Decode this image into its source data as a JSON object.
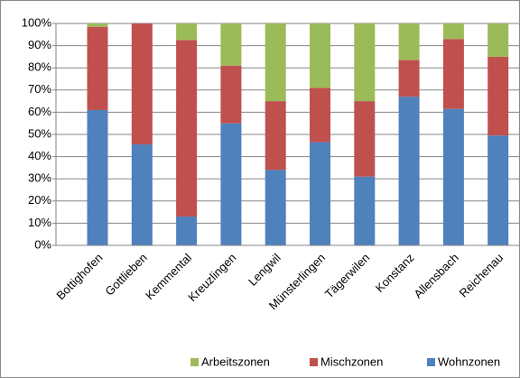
{
  "chart_data": {
    "type": "stacked_bar",
    "categories": [
      "Bottighofen",
      "Gottlieben",
      "Kemmental",
      "Kreuzlingen",
      "Lengwil",
      "Münsterlingen",
      "Tägerwilen",
      "Konstanz",
      "Allensbach",
      "Reichenau"
    ],
    "series": [
      {
        "name": "Arbeitszonen",
        "color": "#9bbb59",
        "values": [
          1.5,
          0,
          7.5,
          19,
          35,
          29,
          35,
          16.5,
          7,
          15
        ]
      },
      {
        "name": "Mischzonen",
        "color": "#c0504d",
        "values": [
          37.5,
          54.5,
          79.5,
          26,
          31,
          24.5,
          34,
          16.5,
          31.5,
          35.5
        ]
      },
      {
        "name": "Wohnzonen",
        "color": "#4f81bd",
        "values": [
          61,
          45.5,
          13,
          55,
          34,
          46.5,
          31,
          67,
          61.5,
          49.5
        ]
      }
    ],
    "ylim": [
      0,
      100
    ],
    "yticks": [
      {
        "value": 0,
        "label": "0%"
      },
      {
        "value": 10,
        "label": "10%"
      },
      {
        "value": 20,
        "label": "20%"
      },
      {
        "value": 30,
        "label": "30%"
      },
      {
        "value": 40,
        "label": "40%"
      },
      {
        "value": 50,
        "label": "50%"
      },
      {
        "value": 60,
        "label": "60%"
      },
      {
        "value": 70,
        "label": "70%"
      },
      {
        "value": 80,
        "label": "80%"
      },
      {
        "value": 90,
        "label": "90%"
      },
      {
        "value": 100,
        "label": "100%"
      }
    ],
    "grid": true,
    "legend": "bottom"
  }
}
